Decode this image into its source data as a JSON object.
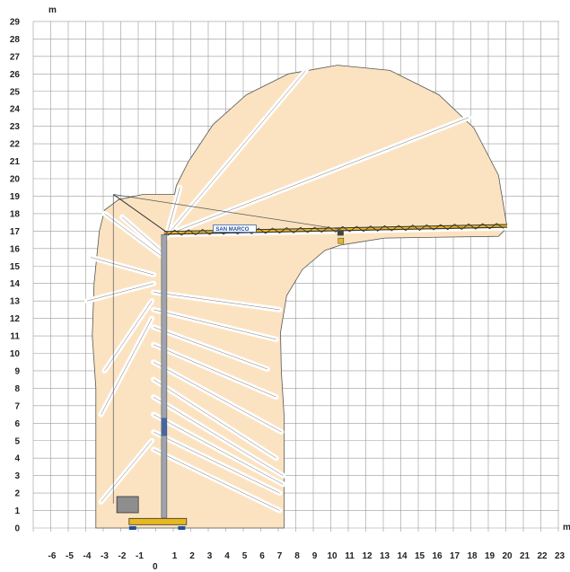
{
  "diagram": {
    "y_unit": "m",
    "x_unit": "m",
    "origin_label": "0",
    "brand_label": "SAN MARCO",
    "colors": {
      "working_area": "#fbe3c2",
      "grid": "#9a9a9a",
      "crane_body": "#9ea4ae",
      "crane_accent": "#e8b820",
      "brand": "#1e4fa0",
      "outline": "#555555"
    }
  },
  "chart_data": {
    "type": "other",
    "description": "crane working range diagram",
    "x_ticks": [
      "-6",
      "-5",
      "-4",
      "-3",
      "-2",
      "-1",
      "1",
      "2",
      "3",
      "4",
      "5",
      "6",
      "7",
      "8",
      "9",
      "10",
      "11",
      "12",
      "13",
      "14",
      "15",
      "16",
      "17",
      "18",
      "19",
      "20",
      "21",
      "22",
      "23"
    ],
    "y_ticks": [
      "0",
      "1",
      "2",
      "3",
      "4",
      "5",
      "6",
      "7",
      "8",
      "9",
      "10",
      "11",
      "12",
      "13",
      "14",
      "15",
      "16",
      "17",
      "18",
      "19",
      "20",
      "21",
      "22",
      "23",
      "24",
      "25",
      "26",
      "27",
      "28",
      "29"
    ],
    "xlim": [
      -6,
      23
    ],
    "ylim": [
      0,
      29
    ],
    "grid": true,
    "envelope": [
      [
        -3.5,
        0
      ],
      [
        -3.5,
        8
      ],
      [
        -3.7,
        11
      ],
      [
        -3.6,
        14
      ],
      [
        -3.3,
        17
      ],
      [
        -3.0,
        18.2
      ],
      [
        -2.2,
        18.8
      ],
      [
        -0.8,
        19.1
      ],
      [
        1.0,
        19.1
      ],
      [
        1.1,
        19.6
      ],
      [
        1.8,
        21
      ],
      [
        3.2,
        23.1
      ],
      [
        5.1,
        24.8
      ],
      [
        7.5,
        26.0
      ],
      [
        10.3,
        26.5
      ],
      [
        13.3,
        26.2
      ],
      [
        16.1,
        24.8
      ],
      [
        18.1,
        22.9
      ],
      [
        19.5,
        20.2
      ],
      [
        20.0,
        17.2
      ],
      [
        19.5,
        16.7
      ],
      [
        13,
        16.6
      ],
      [
        10.5,
        16.2
      ],
      [
        9.6,
        15.9
      ],
      [
        8.3,
        14.8
      ],
      [
        7.4,
        13.3
      ],
      [
        7.05,
        11.2
      ],
      [
        7.1,
        9.0
      ],
      [
        7.25,
        6.5
      ],
      [
        7.25,
        0
      ]
    ],
    "boom_lines": [
      [
        [
          0.2,
          15.6
        ],
        [
          -3.0,
          18.0
        ]
      ],
      [
        [
          0.3,
          15.8
        ],
        [
          -2.0,
          17.8
        ]
      ],
      [
        [
          0.5,
          16.6
        ],
        [
          1.3,
          19.5
        ]
      ],
      [
        [
          0.6,
          16.8
        ],
        [
          8.5,
          26.2
        ]
      ],
      [
        [
          0.6,
          16.8
        ],
        [
          17.8,
          23.5
        ]
      ],
      [
        [
          0.6,
          16.8
        ],
        [
          20.0,
          17.2
        ]
      ],
      [
        [
          -0.2,
          14.5
        ],
        [
          -3.8,
          15.5
        ]
      ],
      [
        [
          -0.2,
          14.0
        ],
        [
          -4.0,
          13.0
        ]
      ],
      [
        [
          -0.2,
          13.5
        ],
        [
          7.0,
          12.5
        ]
      ],
      [
        [
          -0.3,
          13.0
        ],
        [
          -3.0,
          9.0
        ]
      ],
      [
        [
          -0.2,
          12.5
        ],
        [
          6.8,
          10.8
        ]
      ],
      [
        [
          -0.3,
          12.0
        ],
        [
          -3.2,
          6.5
        ]
      ],
      [
        [
          -0.2,
          11.5
        ],
        [
          6.3,
          9.1
        ]
      ],
      [
        [
          -0.2,
          10.5
        ],
        [
          6.8,
          7.5
        ]
      ],
      [
        [
          -0.2,
          9.5
        ],
        [
          7.1,
          5.5
        ]
      ],
      [
        [
          -0.2,
          8.5
        ],
        [
          6.8,
          4.0
        ]
      ],
      [
        [
          -0.2,
          7.5
        ],
        [
          7.2,
          3.0
        ]
      ],
      [
        [
          -0.2,
          6.5
        ],
        [
          7.2,
          2.5
        ]
      ],
      [
        [
          -0.3,
          5.0
        ],
        [
          -3.2,
          1.5
        ]
      ],
      [
        [
          -0.2,
          5.5
        ],
        [
          7.0,
          2.0
        ]
      ],
      [
        [
          -0.2,
          4.5
        ],
        [
          7.0,
          1.0
        ]
      ]
    ]
  }
}
